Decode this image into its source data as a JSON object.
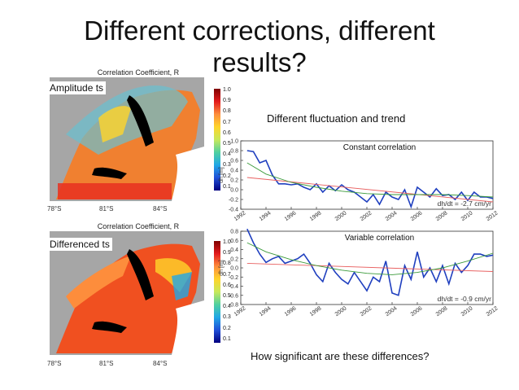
{
  "slide": {
    "title_line1": "Different corrections, different",
    "title_line2": "results?",
    "subtitle": "Different fluctuation and trend",
    "question": "How significant are these differences?"
  },
  "maps": {
    "map_title": "Correlation Coefficient, R",
    "top_label": "Amplitude ts",
    "bottom_label": "Differenced ts",
    "lat_labels": [
      "78°S",
      "81°S",
      "84°S"
    ],
    "colorbar_ticks": [
      "1.0",
      "0.9",
      "0.8",
      "0.7",
      "0.6",
      "0.5",
      "0.4",
      "0.3",
      "0.2",
      "0.1"
    ],
    "colormap": [
      "#7f0000",
      "#e31a1c",
      "#fd8d3c",
      "#ffd42a",
      "#c7e95a",
      "#4fd0a0",
      "#20a7e6",
      "#1f4fd8",
      "#00007f"
    ]
  },
  "chart_data": [
    {
      "type": "line",
      "annotation": "Constant correlation",
      "ylabel": "dh [m]",
      "trend_label": "dh/dt = -2.7 cm/yr",
      "ylim": [
        -0.4,
        1.0
      ],
      "yticks": [
        1.0,
        0.8,
        0.6,
        0.4,
        0.2,
        0.0,
        -0.2,
        -0.4
      ],
      "ytick_labels": [
        "1.0",
        "0.8",
        "0.6",
        "0.4",
        "0.2",
        "0.0",
        "-0.2",
        "-0.4"
      ],
      "xlim": [
        1992,
        2012
      ],
      "xticks": [
        1992,
        1994,
        1996,
        1998,
        2000,
        2002,
        2004,
        2006,
        2008,
        2010,
        2012
      ],
      "series": [
        {
          "color": "#1f3fbf",
          "x": [
            1992.5,
            1993,
            1993.5,
            1994,
            1994.5,
            1995,
            1995.5,
            1996,
            1996.5,
            1997,
            1997.5,
            1998,
            1998.5,
            1999,
            1999.5,
            2000,
            2000.5,
            2001,
            2001.5,
            2002,
            2002.5,
            2003,
            2003.5,
            2004,
            2004.5,
            2005,
            2005.5,
            2006,
            2006.5,
            2007,
            2007.5,
            2008,
            2008.5,
            2009,
            2009.5,
            2010,
            2010.5,
            2011,
            2011.5,
            2012
          ],
          "y": [
            0.8,
            0.78,
            0.55,
            0.6,
            0.3,
            0.12,
            0.12,
            0.1,
            0.12,
            0.05,
            0.0,
            0.12,
            -0.05,
            0.08,
            -0.02,
            0.1,
            0.0,
            -0.05,
            -0.15,
            -0.25,
            -0.1,
            -0.3,
            -0.05,
            -0.15,
            -0.2,
            0.0,
            -0.35,
            0.05,
            -0.05,
            -0.15,
            0.02,
            -0.12,
            -0.1,
            -0.2,
            -0.05,
            -0.22,
            -0.05,
            -0.15,
            -0.15,
            -0.18
          ]
        },
        {
          "color": "#e86060",
          "x": [
            1992.5,
            2012
          ],
          "y": [
            0.25,
            -0.25
          ]
        },
        {
          "color": "#3a9a3a",
          "x": [
            1992.5,
            1994,
            1996,
            1998,
            2000,
            2002,
            2004,
            2006,
            2008,
            2010,
            2012
          ],
          "y": [
            0.55,
            0.32,
            0.15,
            0.05,
            -0.03,
            -0.08,
            -0.1,
            -0.1,
            -0.1,
            -0.12,
            -0.15
          ]
        }
      ]
    },
    {
      "type": "line",
      "annotation": "Variable correlation",
      "ylabel": "dh [m]",
      "trend_label": "dh/dt = -0.9 cm/yr",
      "ylim": [
        -0.8,
        0.8
      ],
      "yticks": [
        0.8,
        0.6,
        0.4,
        0.2,
        0.0,
        -0.2,
        -0.4,
        -0.6,
        -0.8
      ],
      "ytick_labels": [
        "0.8",
        "0.6",
        "0.4",
        "0.2",
        "0.0",
        "-0.2",
        "-0.4",
        "-0.6",
        "-0.8"
      ],
      "xlim": [
        1992,
        2012
      ],
      "xticks": [
        1992,
        1994,
        1996,
        1998,
        2000,
        2002,
        2004,
        2006,
        2008,
        2010,
        2012
      ],
      "series": [
        {
          "color": "#1f3fbf",
          "x": [
            1992.5,
            1993,
            1993.5,
            1994,
            1994.5,
            1995,
            1995.5,
            1996,
            1996.5,
            1997,
            1997.5,
            1998,
            1998.5,
            1999,
            1999.5,
            2000,
            2000.5,
            2001,
            2001.5,
            2002,
            2002.5,
            2003,
            2003.5,
            2004,
            2004.5,
            2005,
            2005.5,
            2006,
            2006.5,
            2007,
            2007.5,
            2008,
            2008.5,
            2009,
            2009.5,
            2010,
            2010.5,
            2011,
            2011.5,
            2012
          ],
          "y": [
            0.85,
            0.55,
            0.3,
            0.12,
            0.2,
            0.25,
            0.1,
            0.15,
            0.2,
            0.3,
            0.1,
            -0.15,
            -0.3,
            0.1,
            -0.1,
            -0.25,
            -0.35,
            -0.1,
            -0.3,
            -0.5,
            -0.2,
            -0.3,
            0.15,
            -0.55,
            -0.6,
            0.05,
            -0.25,
            0.35,
            -0.2,
            0.0,
            -0.3,
            0.05,
            -0.35,
            0.1,
            -0.1,
            0.05,
            0.3,
            0.3,
            0.25,
            0.28
          ]
        },
        {
          "color": "#e86060",
          "x": [
            1992.5,
            2012
          ],
          "y": [
            0.1,
            -0.08
          ]
        },
        {
          "color": "#3a9a3a",
          "x": [
            1992.5,
            1994,
            1996,
            1998,
            2000,
            2002,
            2004,
            2006,
            2008,
            2010,
            2012
          ],
          "y": [
            0.55,
            0.35,
            0.18,
            0.05,
            -0.05,
            -0.12,
            -0.15,
            -0.1,
            0.0,
            0.15,
            0.32
          ]
        }
      ]
    }
  ]
}
